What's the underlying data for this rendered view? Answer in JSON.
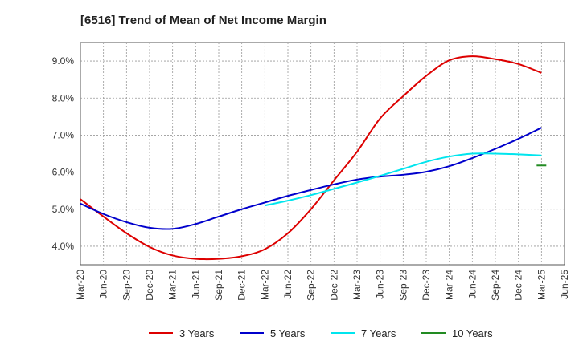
{
  "chart_data": {
    "type": "line",
    "title": "[6516]  Trend of Mean of Net Income Margin",
    "xlabel": "",
    "ylabel": "",
    "x": [
      "Mar-20",
      "Jun-20",
      "Sep-20",
      "Dec-20",
      "Mar-21",
      "Jun-21",
      "Sep-21",
      "Dec-21",
      "Mar-22",
      "Jun-22",
      "Sep-22",
      "Dec-22",
      "Mar-23",
      "Jun-23",
      "Sep-23",
      "Dec-23",
      "Mar-24",
      "Jun-24",
      "Sep-24",
      "Dec-24",
      "Mar-25",
      "Jun-25"
    ],
    "ylim": [
      3.5,
      9.5
    ],
    "yticks": [
      4.0,
      5.0,
      6.0,
      7.0,
      8.0,
      9.0
    ],
    "ytick_labels": [
      "4.0%",
      "5.0%",
      "6.0%",
      "7.0%",
      "8.0%",
      "9.0%"
    ],
    "grid": true,
    "legend_position": "bottom",
    "series": [
      {
        "name": "3 Years",
        "color": "#dd0000",
        "values": [
          5.27,
          4.8,
          4.35,
          3.98,
          3.75,
          3.66,
          3.66,
          3.73,
          3.92,
          4.35,
          5.0,
          5.78,
          6.55,
          7.45,
          8.05,
          8.6,
          9.02,
          9.13,
          9.05,
          8.92,
          8.68,
          null
        ]
      },
      {
        "name": "5 Years",
        "color": "#0000cc",
        "values": [
          5.15,
          4.87,
          4.65,
          4.5,
          4.47,
          4.6,
          4.8,
          5.0,
          5.18,
          5.36,
          5.52,
          5.67,
          5.8,
          5.88,
          5.93,
          6.01,
          6.16,
          6.38,
          6.63,
          6.9,
          7.2,
          null
        ]
      },
      {
        "name": "7 Years",
        "color": "#00e5ee",
        "values": [
          null,
          null,
          null,
          null,
          null,
          null,
          null,
          null,
          5.1,
          5.23,
          5.38,
          5.55,
          5.72,
          5.9,
          6.09,
          6.28,
          6.42,
          6.5,
          6.5,
          6.48,
          6.45,
          null
        ]
      },
      {
        "name": "10 Years",
        "color": "#228b22",
        "values": [
          null,
          null,
          null,
          null,
          null,
          null,
          null,
          null,
          null,
          null,
          null,
          null,
          null,
          null,
          null,
          null,
          null,
          null,
          null,
          null,
          6.18,
          null
        ]
      }
    ]
  }
}
